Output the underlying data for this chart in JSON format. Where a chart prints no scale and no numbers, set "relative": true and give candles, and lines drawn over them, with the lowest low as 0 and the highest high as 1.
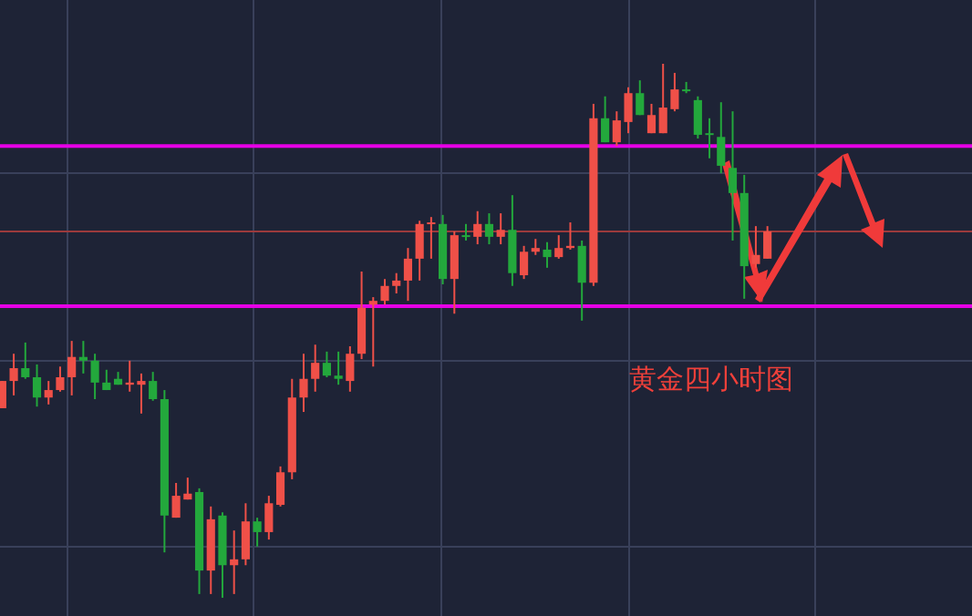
{
  "chart_data": {
    "type": "candlestick",
    "relative": true,
    "grid": true,
    "categories": [
      null,
      null,
      null,
      null,
      null,
      null,
      null,
      null,
      null,
      null,
      null,
      null,
      null,
      null,
      null,
      null,
      null,
      null,
      null,
      null,
      null,
      null,
      null,
      null,
      null,
      null,
      null,
      null,
      null,
      null,
      null,
      null,
      null,
      null,
      null,
      null,
      null,
      null,
      null,
      null,
      null,
      null,
      null,
      null,
      null,
      null,
      null,
      null,
      null,
      null,
      null,
      null,
      null,
      null,
      null,
      null,
      null,
      null,
      null,
      null,
      null,
      null,
      null,
      null,
      null,
      null,
      null
    ],
    "ohlc": [
      [
        0.355,
        0.406,
        0.355,
        0.406
      ],
      [
        0.406,
        0.457,
        0.379,
        0.43
      ],
      [
        0.43,
        0.478,
        0.41,
        0.413
      ],
      [
        0.413,
        0.437,
        0.358,
        0.375
      ],
      [
        0.375,
        0.406,
        0.362,
        0.389
      ],
      [
        0.389,
        0.433,
        0.386,
        0.413
      ],
      [
        0.413,
        0.481,
        0.379,
        0.451
      ],
      [
        0.451,
        0.481,
        0.42,
        0.444
      ],
      [
        0.444,
        0.457,
        0.372,
        0.403
      ],
      [
        0.403,
        0.427,
        0.389,
        0.389
      ],
      [
        0.41,
        0.423,
        0.399,
        0.399
      ],
      [
        0.399,
        0.444,
        0.386,
        0.403
      ],
      [
        0.399,
        0.42,
        0.345,
        0.406
      ],
      [
        0.406,
        0.423,
        0.369,
        0.372
      ],
      [
        0.372,
        0.389,
        0.085,
        0.154
      ],
      [
        0.15,
        0.215,
        0.15,
        0.191
      ],
      [
        0.184,
        0.225,
        0.184,
        0.195
      ],
      [
        0.198,
        0.205,
        0.007,
        0.051
      ],
      [
        0.051,
        0.171,
        0.007,
        0.147
      ],
      [
        0.154,
        0.16,
        0,
        0.061
      ],
      [
        0.061,
        0.126,
        0.007,
        0.072
      ],
      [
        0.072,
        0.177,
        0.061,
        0.143
      ],
      [
        0.143,
        0.15,
        0.096,
        0.123
      ],
      [
        0.123,
        0.191,
        0.109,
        0.177
      ],
      [
        0.174,
        0.246,
        0.171,
        0.235
      ],
      [
        0.235,
        0.41,
        0.222,
        0.375
      ],
      [
        0.375,
        0.457,
        0.348,
        0.41
      ],
      [
        0.41,
        0.474,
        0.386,
        0.44
      ],
      [
        0.44,
        0.461,
        0.413,
        0.416
      ],
      [
        0.416,
        0.461,
        0.399,
        0.41
      ],
      [
        0.406,
        0.471,
        0.386,
        0.457
      ],
      [
        0.457,
        0.611,
        0.447,
        0.543
      ],
      [
        0.549,
        0.563,
        0.433,
        0.556
      ],
      [
        0.556,
        0.597,
        0.549,
        0.584
      ],
      [
        0.584,
        0.608,
        0.57,
        0.594
      ],
      [
        0.594,
        0.655,
        0.556,
        0.635
      ],
      [
        0.635,
        0.706,
        0.594,
        0.7
      ],
      [
        0.7,
        0.713,
        0.635,
        0.703
      ],
      [
        0.7,
        0.717,
        0.587,
        0.597
      ],
      [
        0.597,
        0.686,
        0.532,
        0.679
      ],
      [
        0.679,
        0.7,
        0.669,
        0.676
      ],
      [
        0.676,
        0.724,
        0.662,
        0.7
      ],
      [
        0.7,
        0.72,
        0.662,
        0.676
      ],
      [
        0.676,
        0.72,
        0.662,
        0.689
      ],
      [
        0.689,
        0.754,
        0.584,
        0.608
      ],
      [
        0.604,
        0.659,
        0.597,
        0.648
      ],
      [
        0.648,
        0.672,
        0.642,
        0.655
      ],
      [
        0.652,
        0.666,
        0.618,
        0.638
      ],
      [
        0.638,
        0.679,
        0.635,
        0.655
      ],
      [
        0.655,
        0.703,
        0.652,
        0.659
      ],
      [
        0.659,
        0.669,
        0.519,
        0.59
      ],
      [
        0.59,
        0.925,
        0.584,
        0.898
      ],
      [
        0.898,
        0.939,
        0.853,
        0.853
      ],
      [
        0.853,
        0.911,
        0.846,
        0.894
      ],
      [
        0.891,
        0.956,
        0.87,
        0.945
      ],
      [
        0.945,
        0.969,
        0.904,
        0.904
      ],
      [
        0.87,
        0.925,
        0.87,
        0.904
      ],
      [
        0.87,
        1,
        0.87,
        0.918
      ],
      [
        0.915,
        0.983,
        0.911,
        0.952
      ],
      [
        0.952,
        0.966,
        0.945,
        0.949
      ],
      [
        0.932,
        0.939,
        0.86,
        0.867
      ],
      [
        0.87,
        0.898,
        0.823,
        0.867
      ],
      [
        0.863,
        0.928,
        0.795,
        0.809
      ],
      [
        0.805,
        0.911,
        0.669,
        0.758
      ],
      [
        0.758,
        0.792,
        0.56,
        0.621
      ],
      [
        0.625,
        0.696,
        0.618,
        0.642
      ],
      [
        0.635,
        0.696,
        0.635,
        0.686
      ]
    ],
    "ref_lines": [
      {
        "axis": "y",
        "value": 0.846,
        "color": "#e600e6"
      },
      {
        "axis": "y",
        "value": 0.546,
        "color": "#e600e6"
      },
      {
        "axis": "y",
        "value": 0.686,
        "color": "#9c3a3c"
      }
    ],
    "annotations": [
      "黄金四小时图"
    ]
  }
}
